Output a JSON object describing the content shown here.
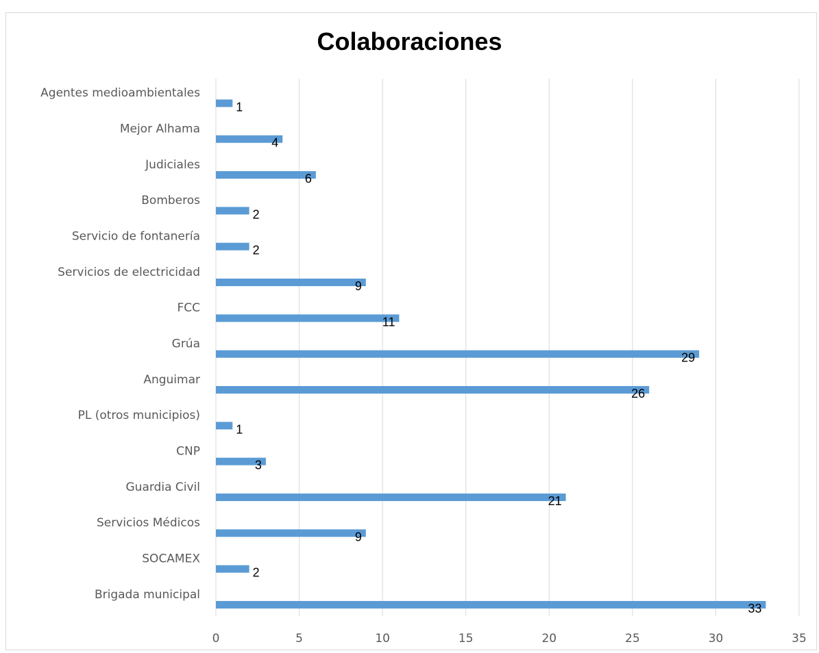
{
  "chart_data": {
    "type": "bar",
    "orientation": "horizontal",
    "title": "Colaboraciones",
    "categories": [
      "Agentes medioambientales",
      "Mejor Alhama",
      "Judiciales",
      "Bomberos",
      "Servicio de fontanería",
      "Servicios de electricidad",
      "FCC",
      "Grúa",
      "Anguimar",
      "PL (otros municipios)",
      "CNP",
      "Guardia Civil",
      "Servicios Médicos",
      "SOCAMEX",
      "Brigada municipal"
    ],
    "values": [
      1,
      4,
      6,
      2,
      2,
      9,
      11,
      29,
      26,
      1,
      3,
      21,
      9,
      2,
      33
    ],
    "xlim": [
      0,
      35
    ],
    "xticks": [
      0,
      5,
      10,
      15,
      20,
      25,
      30,
      35
    ],
    "grid": "vertical",
    "legend": "none",
    "bar_color": "#5b9bd5",
    "grid_color": "#d9d9d9"
  }
}
